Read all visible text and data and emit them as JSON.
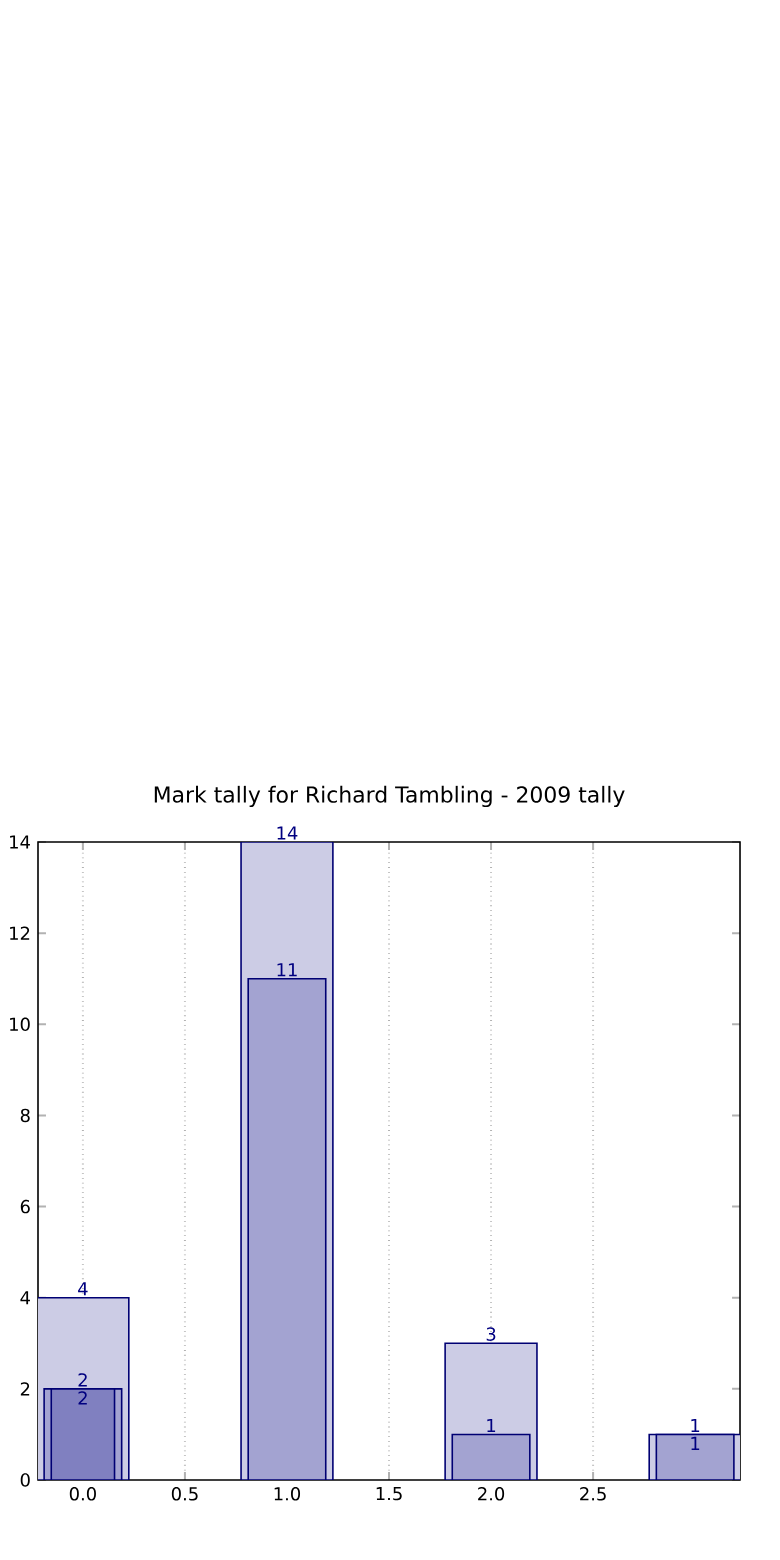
{
  "chart_data": {
    "type": "bar",
    "title": "Mark tally for Richard Tambling - 2009 tally",
    "x": [
      0,
      1,
      2,
      3
    ],
    "series": [
      {
        "color": "#ccccE5",
        "values": [
          4,
          14,
          3,
          1
        ]
      },
      {
        "color": "#a3a3d1",
        "values": [
          2,
          11,
          1,
          1
        ]
      },
      {
        "color": "#8080c0",
        "values": [
          2,
          null,
          null,
          null
        ]
      }
    ],
    "xlim": [
      -0.22,
      3.22
    ],
    "xticks": [
      {
        "value": 0,
        "label": "0.0"
      },
      {
        "value": 0.5,
        "label": "0.5"
      },
      {
        "value": 1,
        "label": "1.0"
      },
      {
        "value": 1.5,
        "label": "1.5"
      },
      {
        "value": 2,
        "label": "2.0"
      },
      {
        "value": 2.5,
        "label": "2.5"
      }
    ],
    "ylim": [
      0,
      14
    ],
    "yticks": [
      0,
      2,
      4,
      6,
      8,
      10,
      12,
      14
    ],
    "grid": "x",
    "data_labels": true
  }
}
